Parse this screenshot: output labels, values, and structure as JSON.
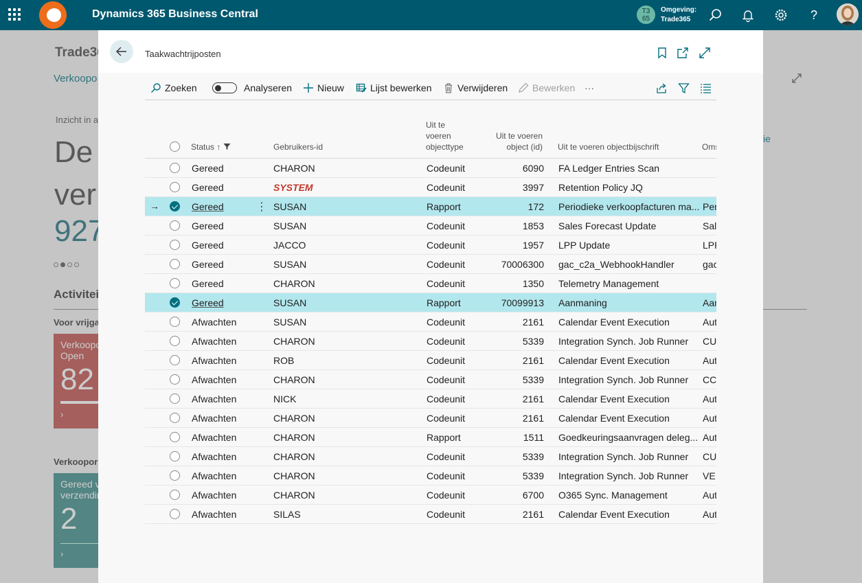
{
  "topbar": {
    "app_title": "Dynamics 365 Business Central",
    "env_badge_line1": "T3",
    "env_badge_line2": "65",
    "env_label_line1": "Omgeving:",
    "env_label_line2": "Trade365"
  },
  "background": {
    "company": "Trade36",
    "link": "Verkoopo",
    "insight": "Inzicht in a",
    "big_line1": "De",
    "big_line2": "ver",
    "big_num": "927",
    "activities": "Activitei",
    "voor_vrijgave": "Voor vrijga",
    "tile1_label1": "Verkoopo",
    "tile1_label2": "Open",
    "tile1_value": "82",
    "section2": "Verkoopor",
    "tile2_label1": "Gereed v",
    "tile2_label2": "verzendir",
    "tile2_value": "2",
    "right_fragment": "ie"
  },
  "dialog": {
    "title": "Taakwachtrijposten"
  },
  "actions": {
    "search": "Zoeken",
    "analyze": "Analyseren",
    "new": "Nieuw",
    "edit_list": "Lijst bewerken",
    "delete": "Verwijderen",
    "edit": "Bewerken",
    "more": "···"
  },
  "columns": {
    "status": "Status",
    "user_id": "Gebruikers-id",
    "obj_type_1": "Uit te",
    "obj_type_2": "voeren",
    "obj_type_3": "objecttype",
    "obj_id_1": "Uit te voeren",
    "obj_id_2": "object (id)",
    "obj_caption": "Uit te voeren objectbijschrift",
    "desc": "Oms"
  },
  "rows": [
    {
      "status": "Gereed",
      "user": "CHARON",
      "type": "Codeunit",
      "id": "6090",
      "caption": "FA Ledger Entries Scan",
      "desc": ""
    },
    {
      "status": "Gereed",
      "user": "SYSTEM",
      "type": "Codeunit",
      "id": "3997",
      "caption": "Retention Policy JQ",
      "desc": ""
    },
    {
      "status": "Gereed",
      "user": "SUSAN",
      "type": "Rapport",
      "id": "172",
      "caption": "Periodieke verkoopfacturen ma...",
      "desc": "Per"
    },
    {
      "status": "Gereed",
      "user": "SUSAN",
      "type": "Codeunit",
      "id": "1853",
      "caption": "Sales Forecast Update",
      "desc": "Sal"
    },
    {
      "status": "Gereed",
      "user": "JACCO",
      "type": "Codeunit",
      "id": "1957",
      "caption": "LPP Update",
      "desc": "LPP"
    },
    {
      "status": "Gereed",
      "user": "SUSAN",
      "type": "Codeunit",
      "id": "70006300",
      "caption": "gac_c2a_WebhookHandler",
      "desc": "gac"
    },
    {
      "status": "Gereed",
      "user": "CHARON",
      "type": "Codeunit",
      "id": "1350",
      "caption": "Telemetry Management",
      "desc": ""
    },
    {
      "status": "Gereed",
      "user": "SUSAN",
      "type": "Rapport",
      "id": "70099913",
      "caption": "Aanmaning",
      "desc": "Aan"
    },
    {
      "status": "Afwachten",
      "user": "SUSAN",
      "type": "Codeunit",
      "id": "2161",
      "caption": "Calendar Event Execution",
      "desc": "Aut"
    },
    {
      "status": "Afwachten",
      "user": "CHARON",
      "type": "Codeunit",
      "id": "5339",
      "caption": "Integration Synch. Job Runner",
      "desc": "CU"
    },
    {
      "status": "Afwachten",
      "user": "ROB",
      "type": "Codeunit",
      "id": "2161",
      "caption": "Calendar Event Execution",
      "desc": "Aut"
    },
    {
      "status": "Afwachten",
      "user": "CHARON",
      "type": "Codeunit",
      "id": "5339",
      "caption": "Integration Synch. Job Runner",
      "desc": "CC"
    },
    {
      "status": "Afwachten",
      "user": "NICK",
      "type": "Codeunit",
      "id": "2161",
      "caption": "Calendar Event Execution",
      "desc": "Aut"
    },
    {
      "status": "Afwachten",
      "user": "CHARON",
      "type": "Codeunit",
      "id": "2161",
      "caption": "Calendar Event Execution",
      "desc": "Aut"
    },
    {
      "status": "Afwachten",
      "user": "CHARON",
      "type": "Rapport",
      "id": "1511",
      "caption": "Goedkeuringsaanvragen deleg...",
      "desc": "Aut"
    },
    {
      "status": "Afwachten",
      "user": "CHARON",
      "type": "Codeunit",
      "id": "5339",
      "caption": "Integration Synch. Job Runner",
      "desc": "CU"
    },
    {
      "status": "Afwachten",
      "user": "CHARON",
      "type": "Codeunit",
      "id": "5339",
      "caption": "Integration Synch. Job Runner",
      "desc": "VE"
    },
    {
      "status": "Afwachten",
      "user": "CHARON",
      "type": "Codeunit",
      "id": "6700",
      "caption": "O365 Sync. Management",
      "desc": "Aut"
    },
    {
      "status": "Afwachten",
      "user": "SILAS",
      "type": "Codeunit",
      "id": "2161",
      "caption": "Calendar Event Execution",
      "desc": "Aut"
    }
  ],
  "colors": {
    "topbar": "#00586e",
    "selected_row": "#b3e7ee",
    "check": "#00707f",
    "tile_red": "#c0504d",
    "tile_teal": "#3a8d8a"
  }
}
